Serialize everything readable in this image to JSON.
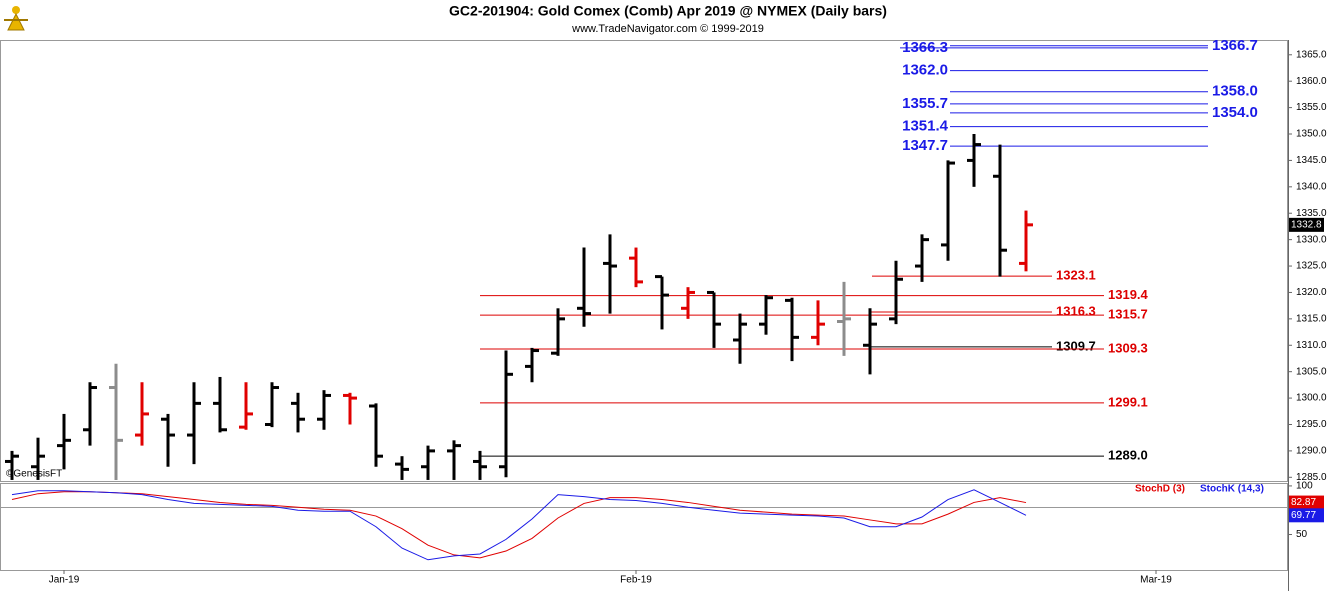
{
  "chart_data": {
    "type": "ohlc",
    "title": "GC2-201904:  Gold Comex (Comb) Apr 2019 @ NYMEX  (Daily bars)",
    "subtitle": "www.TradeNavigator.com © 1999-2019",
    "source": "©GenesisFT",
    "categories": [
      null,
      null,
      "Jan-19",
      null,
      null,
      null,
      null,
      null,
      null,
      null,
      null,
      null,
      null,
      null,
      null,
      null,
      null,
      null,
      null,
      null,
      null,
      null,
      null,
      null,
      "Feb-19",
      null,
      null,
      null,
      null,
      null,
      null,
      null,
      null,
      null,
      null,
      null,
      null,
      null,
      null,
      null,
      null,
      null,
      null,
      null,
      "Mar-19",
      null,
      null,
      null,
      null
    ],
    "open": [
      1288,
      1287,
      1291,
      1294,
      1302,
      1293,
      1296,
      1293,
      1299,
      1294.5,
      1295,
      1299,
      1296,
      1300.5,
      1298.5,
      1287.5,
      1287,
      1290,
      1288,
      1287,
      1306,
      1308.5,
      1317,
      1325.5,
      1326.5,
      1323,
      1317,
      1320,
      1311,
      1314,
      1318.5,
      1311.5,
      1314.5,
      1310,
      1315,
      1325,
      1329,
      1345,
      1342,
      1325.5,
      null,
      null,
      null,
      null,
      null,
      null,
      null,
      null,
      null
    ],
    "high": [
      1290,
      1292.5,
      1297,
      1303,
      1306.5,
      1303,
      1297,
      1303,
      1304,
      1303,
      1303,
      1301,
      1301.5,
      1301,
      1299,
      1289,
      1291,
      1292,
      1290,
      1309,
      1309.5,
      1317,
      1328.5,
      1331,
      1328.5,
      1323,
      1321,
      1320,
      1316,
      1319.5,
      1319,
      1318.5,
      1322,
      1317,
      1326,
      1331,
      1345,
      1350,
      1348,
      1335.5,
      null,
      null,
      null,
      null,
      null,
      null,
      null,
      null,
      null
    ],
    "low": [
      1284.5,
      1284.5,
      1286.5,
      1291,
      1284.5,
      1291,
      1287,
      1287.5,
      1293.5,
      1294,
      1294.5,
      1293.5,
      1294,
      1295,
      1287,
      1284.5,
      1284.5,
      1284.5,
      1284.5,
      1285,
      1303,
      1308,
      1313.5,
      1316,
      1321,
      1313,
      1315,
      1309.5,
      1306.5,
      1312,
      1307,
      1310,
      1308,
      1304.5,
      1314,
      1322,
      1326,
      1340,
      1323,
      1324,
      null,
      null,
      null,
      null,
      null,
      null,
      null,
      null,
      null
    ],
    "close": [
      1289,
      1289,
      1292,
      1302,
      1292,
      1297,
      1293,
      1299,
      1294,
      1297,
      1302,
      1296,
      1300.5,
      1300,
      1289,
      1286.5,
      1290,
      1291,
      1287,
      1304.5,
      1309,
      1315,
      1316,
      1325,
      1322,
      1319.5,
      1320,
      1314,
      1314,
      1319,
      1311.5,
      1314,
      1315,
      1314,
      1322.5,
      1330,
      1344.5,
      1348,
      1328,
      1332.8,
      null,
      null,
      null,
      null,
      null,
      null,
      null,
      null,
      null
    ],
    "colors": [
      "#000000",
      "#000000",
      "#000000",
      "#000000",
      "#8c8c8c",
      "#e00000",
      "#000000",
      "#000000",
      "#000000",
      "#e00000",
      "#000000",
      "#000000",
      "#000000",
      "#e00000",
      "#000000",
      "#000000",
      "#000000",
      "#000000",
      "#000000",
      "#000000",
      "#000000",
      "#000000",
      "#000000",
      "#000000",
      "#e00000",
      "#000000",
      "#e00000",
      "#000000",
      "#000000",
      "#000000",
      "#000000",
      "#e00000",
      "#8c8c8c",
      "#000000",
      "#000000",
      "#000000",
      "#000000",
      "#000000",
      "#000000",
      "#e00000",
      null,
      null,
      null,
      null,
      null,
      null,
      null,
      null,
      null
    ],
    "ylim": [
      1284.3,
      1367.8
    ],
    "yticks": [
      {
        "value": 1285,
        "label": "1285.0"
      },
      {
        "value": 1290,
        "label": "1290.0"
      },
      {
        "value": 1295,
        "label": "1295.0"
      },
      {
        "value": 1300,
        "label": "1300.0"
      },
      {
        "value": 1305,
        "label": "1305.0"
      },
      {
        "value": 1310,
        "label": "1310.0"
      },
      {
        "value": 1315,
        "label": "1315.0"
      },
      {
        "value": 1320,
        "label": "1320.0"
      },
      {
        "value": 1325,
        "label": "1325.0"
      },
      {
        "value": 1330,
        "label": "1330.0"
      },
      {
        "value": 1335,
        "label": "1335.0"
      },
      {
        "value": 1340,
        "label": "1340.0"
      },
      {
        "value": 1345,
        "label": "1345.0"
      },
      {
        "value": 1350,
        "label": "1350.0"
      },
      {
        "value": 1355,
        "label": "1355.0"
      },
      {
        "value": 1360,
        "label": "1360.0"
      },
      {
        "value": 1365,
        "label": "1365.0"
      }
    ],
    "levels": [
      {
        "value": 1366.7,
        "label": "1366.7",
        "color": "#1a1ae6"
      },
      {
        "value": 1366.3,
        "label": "1366.3",
        "color": "#1a1ae6"
      },
      {
        "value": 1362.0,
        "label": "1362.0",
        "color": "#1a1ae6"
      },
      {
        "value": 1358.0,
        "label": "1358.0",
        "color": "#1a1ae6"
      },
      {
        "value": 1355.7,
        "label": "1355.7",
        "color": "#1a1ae6"
      },
      {
        "value": 1354.0,
        "label": "1354.0",
        "color": "#1a1ae6"
      },
      {
        "value": 1351.4,
        "label": "1351.4",
        "color": "#1a1ae6"
      },
      {
        "value": 1347.7,
        "label": "1347.7",
        "color": "#1a1ae6"
      },
      {
        "value": 1323.1,
        "label": "1323.1",
        "color": "#dd0000"
      },
      {
        "value": 1319.4,
        "label": "1319.4",
        "color": "#dd0000"
      },
      {
        "value": 1316.3,
        "label": "1316.3",
        "color": "#dd0000"
      },
      {
        "value": 1315.7,
        "label": "1315.7",
        "color": "#dd0000"
      },
      {
        "value": 1309.7,
        "label": "1309.7",
        "color": "#000000"
      },
      {
        "value": 1309.3,
        "label": "1309.3",
        "color": "#dd0000"
      },
      {
        "value": 1299.1,
        "label": "1299.1",
        "color": "#dd0000"
      },
      {
        "value": 1289.0,
        "label": "1289.0",
        "color": "#000000"
      }
    ],
    "indicator": {
      "type": "line",
      "ylim": [
        13.5,
        103
      ],
      "yticks": [
        50,
        100
      ],
      "series": [
        {
          "name": "StochD (3)",
          "color": "#e00000",
          "values": [
            86,
            92,
            94,
            94,
            93,
            92,
            89,
            86,
            83,
            81,
            80,
            78,
            76,
            75,
            69,
            56,
            39,
            29,
            26,
            33,
            46,
            67,
            82,
            88,
            88,
            86,
            83,
            79,
            75,
            73,
            71,
            70,
            69,
            65,
            61,
            61,
            71,
            83,
            88,
            82.87,
            null,
            null,
            null,
            null,
            null,
            null,
            null,
            null,
            null
          ]
        },
        {
          "name": "StochK (14,3)",
          "color": "#1a1ae6",
          "values": [
            91,
            95,
            95,
            94,
            93,
            91,
            86,
            82,
            81,
            80,
            79,
            75,
            74,
            74,
            58,
            36,
            24,
            28,
            30,
            45,
            66,
            91,
            89,
            86,
            85,
            82,
            78,
            75,
            72,
            71,
            70,
            69,
            67,
            58,
            58,
            68,
            86,
            96,
            83,
            69.77,
            null,
            null,
            null,
            null,
            null,
            null,
            null,
            null,
            null
          ]
        }
      ]
    }
  }
}
